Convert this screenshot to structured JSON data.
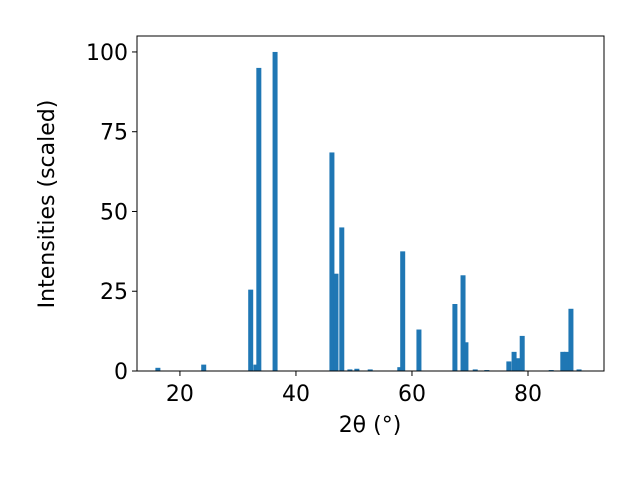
{
  "chart_data": {
    "type": "bar",
    "xlabel": "2θ (°)",
    "ylabel": "Intensities (scaled)",
    "x": [
      16.2,
      24.1,
      32.2,
      33.1,
      33.6,
      36.4,
      46.2,
      46.9,
      47.9,
      49.3,
      50.5,
      52.8,
      57.9,
      58.4,
      61.2,
      67.4,
      68.8,
      69.3,
      70.9,
      72.9,
      76.7,
      77.6,
      78.4,
      79.0,
      84.0,
      86.0,
      86.6,
      87.4,
      88.8
    ],
    "values": [
      1,
      2,
      25.5,
      2,
      95,
      100,
      68.5,
      30.5,
      45,
      0.5,
      0.7,
      0.5,
      1.2,
      37.5,
      13,
      21,
      30,
      9,
      0.5,
      0.3,
      3,
      6,
      4,
      11,
      0.3,
      6,
      6,
      19.5,
      0.5
    ],
    "color": "#1f77b4",
    "xlim": [
      12.6,
      93.1
    ],
    "xticks": [
      20,
      40,
      60,
      80
    ],
    "ylim": [
      0,
      105
    ],
    "yticks": [
      0,
      25,
      50,
      75,
      100
    ]
  }
}
